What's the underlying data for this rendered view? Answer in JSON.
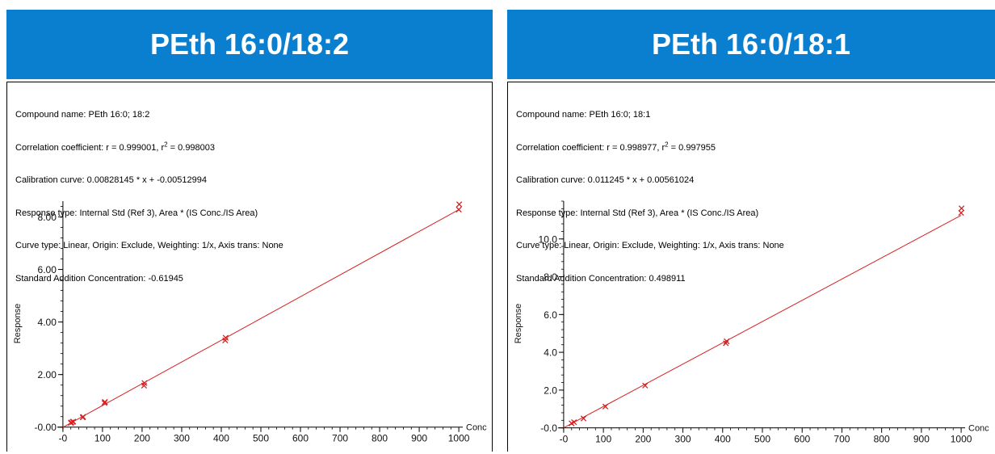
{
  "panels": [
    {
      "banner": "PEth 16:0/18:2",
      "info": {
        "compound": "Compound name: PEth 16:0; 18:2",
        "corr_pre": "Correlation coefficient: r = 0.999001, r",
        "corr_sup": "2",
        "corr_post": " = 0.998003",
        "calib": "Calibration curve: 0.00828145 * x + -0.00512994",
        "response": "Response type: Internal Std (Ref 3), Area * (IS Conc./IS Area)",
        "curve": "Curve type: Linear, Origin: Exclude, Weighting: 1/x, Axis trans: None",
        "std_add": "Standard Addition Concentration: -0.61945"
      }
    },
    {
      "banner": "PEth 16:0/18:1",
      "info": {
        "compound": "Compound name: PEth 16:0; 18:1",
        "corr_pre": "Correlation coefficient: r = 0.998977, r",
        "corr_sup": "2",
        "corr_post": " = 0.997955",
        "calib": "Calibration curve: 0.011245 * x + 0.00561024",
        "response": "Response type: Internal Std (Ref 3), Area * (IS Conc./IS Area)",
        "curve": "Curve type: Linear, Origin: Exclude, Weighting: 1/x, Axis trans: None",
        "std_add": "Standard Addition Concentration: 0.498911"
      }
    }
  ],
  "colors": {
    "banner": "#0a7fd0",
    "fit_line": "#d62020",
    "points": "#d62020"
  },
  "chart_data": [
    {
      "type": "scatter",
      "title": "PEth 16:0/18:2",
      "xlabel": "Conc",
      "ylabel": "Response",
      "xlim": [
        -10,
        1010
      ],
      "ylim": [
        -0.1,
        8.6
      ],
      "x_ticks": [
        0,
        100,
        200,
        300,
        400,
        500,
        600,
        700,
        800,
        900,
        1000
      ],
      "x_tick_labels": [
        "-0",
        "100",
        "200",
        "300",
        "400",
        "500",
        "600",
        "700",
        "800",
        "900",
        "1000"
      ],
      "y_ticks": [
        0,
        2,
        4,
        6,
        8
      ],
      "y_tick_labels": [
        "-0.00",
        "2.00",
        "4.00",
        "6.00",
        "8.00"
      ],
      "fit": {
        "slope": 0.00828145,
        "intercept": -0.00512994,
        "x_range": [
          0,
          1000
        ]
      },
      "series": [
        {
          "marker": "x",
          "points": [
            [
              20,
              0.16
            ],
            [
              21,
              0.18
            ],
            [
              25,
              0.2
            ],
            [
              26,
              0.21
            ],
            [
              50,
              0.37
            ],
            [
              51,
              0.39
            ],
            [
              105,
              0.92
            ],
            [
              106,
              0.96
            ],
            [
              205,
              1.58
            ],
            [
              206,
              1.68
            ],
            [
              410,
              3.3
            ],
            [
              411,
              3.4
            ],
            [
              1000,
              8.28
            ],
            [
              1001,
              8.48
            ]
          ]
        }
      ]
    },
    {
      "type": "scatter",
      "title": "PEth 16:0/18:1",
      "xlabel": "Conc",
      "ylabel": "Response",
      "xlim": [
        -10,
        1010
      ],
      "ylim": [
        -0.1,
        12.0
      ],
      "x_ticks": [
        0,
        100,
        200,
        300,
        400,
        500,
        600,
        700,
        800,
        900,
        1000
      ],
      "x_tick_labels": [
        "-0",
        "100",
        "200",
        "300",
        "400",
        "500",
        "600",
        "700",
        "800",
        "900",
        "1000"
      ],
      "y_ticks": [
        0,
        2,
        4,
        6,
        8,
        10
      ],
      "y_tick_labels": [
        "-0.0",
        "2.0",
        "4.0",
        "6.0",
        "8.0",
        "10.0"
      ],
      "fit": {
        "slope": 0.011245,
        "intercept": 0.00561024,
        "x_range": [
          0,
          1000
        ]
      },
      "series": [
        {
          "marker": "x",
          "points": [
            [
              20,
              0.24
            ],
            [
              26,
              0.3
            ],
            [
              50,
              0.5
            ],
            [
              105,
              1.13
            ],
            [
              205,
              2.24
            ],
            [
              408,
              4.48
            ],
            [
              410,
              4.58
            ],
            [
              1000,
              11.38
            ],
            [
              1001,
              11.62
            ]
          ]
        }
      ]
    }
  ]
}
